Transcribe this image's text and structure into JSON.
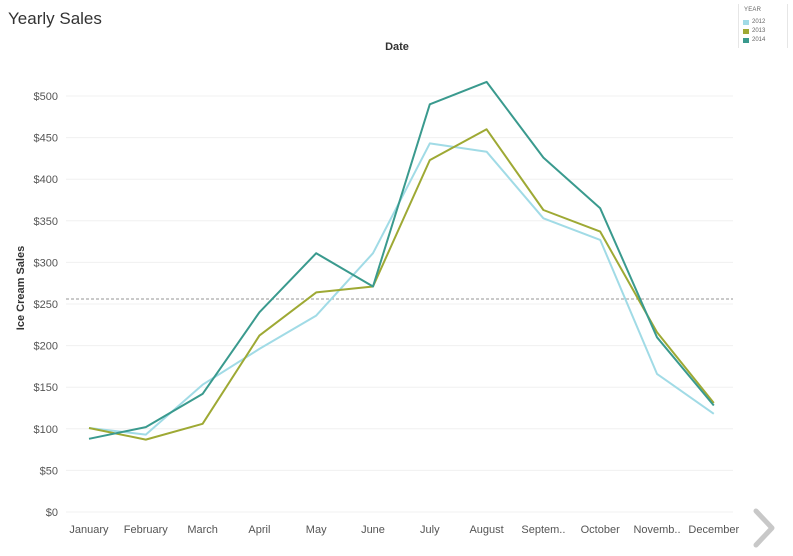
{
  "page": {
    "title": "Yearly Sales"
  },
  "legend": {
    "title": "YEAR",
    "items": [
      {
        "label": "2012",
        "color": "#a1dbe6"
      },
      {
        "label": "2013",
        "color": "#9ea934"
      },
      {
        "label": "2014",
        "color": "#3a9a8e"
      }
    ]
  },
  "chart_data": {
    "type": "line",
    "title": "",
    "xlabel": "Date",
    "ylabel": "Ice Cream Sales",
    "categories": [
      "January",
      "February",
      "March",
      "April",
      "May",
      "June",
      "July",
      "August",
      "Septem..",
      "October",
      "Novemb..",
      "December"
    ],
    "series": [
      {
        "name": "2012",
        "color": "#a1dbe6",
        "values": [
          101,
          93,
          153,
          196,
          236,
          311,
          443,
          433,
          353,
          327,
          166,
          118
        ]
      },
      {
        "name": "2013",
        "color": "#9ea934",
        "values": [
          101,
          87,
          106,
          212,
          264,
          271,
          423,
          460,
          363,
          337,
          216,
          131
        ]
      },
      {
        "name": "2014",
        "color": "#3a9a8e",
        "values": [
          88,
          102,
          142,
          240,
          311,
          271,
          490,
          517,
          426,
          365,
          210,
          128
        ]
      }
    ],
    "reference_line": {
      "value": 256,
      "style": "dashed"
    },
    "ylim": [
      0,
      500
    ],
    "yticks": [
      0,
      50,
      100,
      150,
      200,
      250,
      300,
      350,
      400,
      450,
      500
    ],
    "ytick_labels": [
      "$0",
      "$50",
      "$100",
      "$150",
      "$200",
      "$250",
      "$300",
      "$350",
      "$400",
      "$450",
      "$500"
    ],
    "grid": true,
    "legend_position": "top-right"
  },
  "colors": {
    "reference_line": "#aaaaaa",
    "gridline": "#f0f0f0",
    "text": "#555555",
    "arrow": "#c8c8c8"
  }
}
